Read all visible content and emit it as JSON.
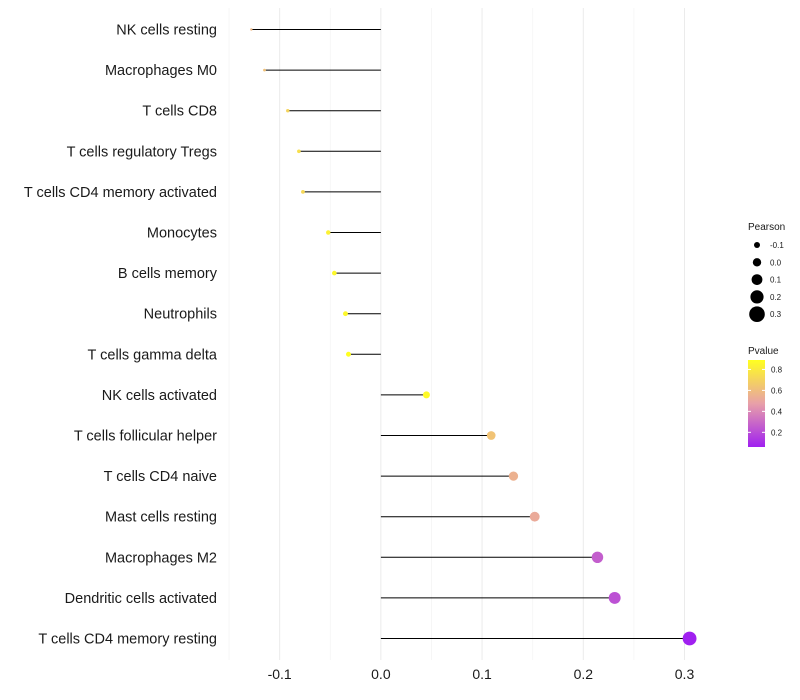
{
  "chart_data": {
    "type": "lollipop",
    "categories": [
      "NK cells resting",
      "Macrophages M0",
      "T cells CD8",
      "T cells regulatory  Tregs",
      "T cells CD4 memory activated",
      "Monocytes",
      "B cells memory",
      "Neutrophils",
      "T cells gamma delta",
      "NK cells activated",
      "T cells follicular helper",
      "T cells CD4 naive",
      "Mast cells resting",
      "Macrophages M2",
      "Dendritic cells activated",
      "T cells CD4 memory resting"
    ],
    "pearson": [
      -0.128,
      -0.115,
      -0.092,
      -0.081,
      -0.077,
      -0.052,
      -0.046,
      -0.035,
      -0.032,
      0.045,
      0.109,
      0.131,
      0.152,
      0.214,
      0.231,
      0.305
    ],
    "pvalue": [
      0.58,
      0.62,
      0.7,
      0.75,
      0.72,
      0.83,
      0.86,
      0.86,
      0.89,
      0.87,
      0.63,
      0.55,
      0.52,
      0.26,
      0.22,
      0.06
    ],
    "xlim": [
      -0.155,
      0.34
    ],
    "x_ticks": [
      -0.1,
      0.0,
      0.1,
      0.2,
      0.3
    ],
    "x_tick_labels": [
      "-0.1",
      "0.0",
      "0.1",
      "0.2",
      "0.3"
    ],
    "grid": true,
    "legend": {
      "size_title": "Pearson",
      "size_values": [
        -0.1,
        0.0,
        0.1,
        0.2,
        0.3
      ],
      "size_labels": [
        "-0.1",
        "0.0",
        "0.1",
        "0.2",
        "0.3"
      ],
      "color_title": "Pvalue",
      "color_ticks": [
        0.8,
        0.6,
        0.4,
        0.2
      ],
      "color_tick_labels": [
        "0.8",
        "0.6",
        "0.4",
        "0.2"
      ],
      "color_range": [
        0.06,
        0.89
      ],
      "color_low": "#a020f0",
      "color_high": "#ffff20",
      "placement": "right"
    }
  }
}
